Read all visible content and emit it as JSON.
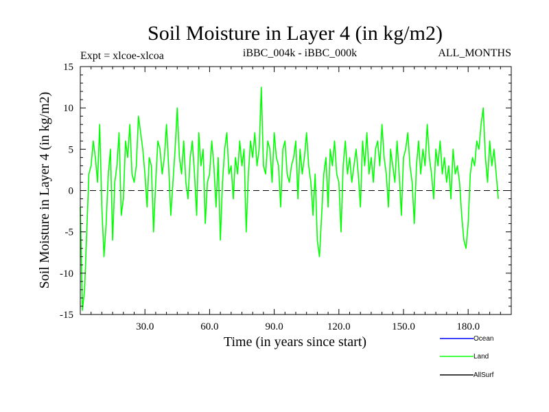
{
  "chart_data": {
    "type": "line",
    "title": "Soil Moisture in Layer 4 (in kg/m2)",
    "experiment_label": "Expt = xlcoe-xlcoa",
    "subtitle_center": "iBBC_004k - iBBC_000k",
    "subtitle_right": "ALL_MONTHS",
    "xlabel": "Time (in years since start)",
    "ylabel": "Soil Moisture in Layer 4 (in kg/m2)",
    "xlim": [
      0,
      200
    ],
    "ylim": [
      -15,
      15
    ],
    "x_ticks": [
      30,
      60,
      90,
      120,
      150,
      180
    ],
    "x_tick_labels": [
      "30.0",
      "60.0",
      "90.0",
      "120.0",
      "150.0",
      "180.0"
    ],
    "y_ticks": [
      -15,
      -10,
      -5,
      0,
      5,
      10,
      15
    ],
    "y_tick_labels": [
      "-15",
      "-10",
      "-5",
      "0",
      "5",
      "10",
      "15"
    ],
    "zero_line": true,
    "legend": [
      {
        "name": "Ocean",
        "color": "#0000ff"
      },
      {
        "name": "Land",
        "color": "#00ff00"
      },
      {
        "name": "AllSurf",
        "color": "#000000"
      }
    ],
    "series": [
      {
        "name": "Land",
        "color": "#00ff00",
        "x_start": 0,
        "x_step": 1,
        "values": [
          -2,
          -14.5,
          -12,
          -5,
          2,
          3,
          6,
          4,
          1,
          8,
          -2,
          -8,
          -4,
          2,
          5,
          -6,
          1,
          3,
          7,
          -3,
          -1,
          6,
          4,
          8,
          2,
          1,
          3,
          9,
          7,
          5,
          2,
          -2,
          4,
          3,
          -5,
          1,
          6,
          5,
          2,
          4,
          8,
          3,
          -3,
          1,
          5,
          10,
          4,
          2,
          6,
          1,
          -1,
          4,
          6,
          2,
          -3,
          7,
          3,
          5,
          -4,
          1,
          2,
          6,
          3,
          -2,
          4,
          -6,
          1,
          5,
          7,
          2,
          3,
          -1,
          4,
          2,
          6,
          3,
          5,
          -5,
          2,
          6,
          4,
          7,
          3,
          5,
          12.5,
          3,
          2,
          6,
          5,
          1,
          7,
          4,
          3,
          -2,
          5,
          6,
          2,
          1,
          3,
          4,
          6,
          -1,
          5,
          2,
          4,
          7,
          3,
          1,
          -3,
          2,
          -6,
          -8,
          -3,
          2,
          4,
          -2,
          5,
          3,
          6,
          2,
          1,
          -5,
          3,
          6,
          2,
          4,
          1,
          3,
          5,
          2,
          -2,
          6,
          3,
          7,
          2,
          4,
          1,
          5,
          6,
          3,
          8,
          4,
          2,
          -2,
          5,
          3,
          1,
          6,
          2,
          -3,
          4,
          5,
          7,
          3,
          1,
          -4,
          3,
          6,
          2,
          5,
          3,
          8,
          4,
          2,
          -1,
          5,
          3,
          6,
          2,
          4,
          1,
          3,
          -1,
          5,
          2,
          3,
          1,
          -3,
          -6,
          -7,
          -4,
          2,
          4,
          3,
          6,
          5,
          8,
          10,
          4,
          1,
          6,
          3,
          5,
          2,
          -1
        ]
      }
    ]
  }
}
